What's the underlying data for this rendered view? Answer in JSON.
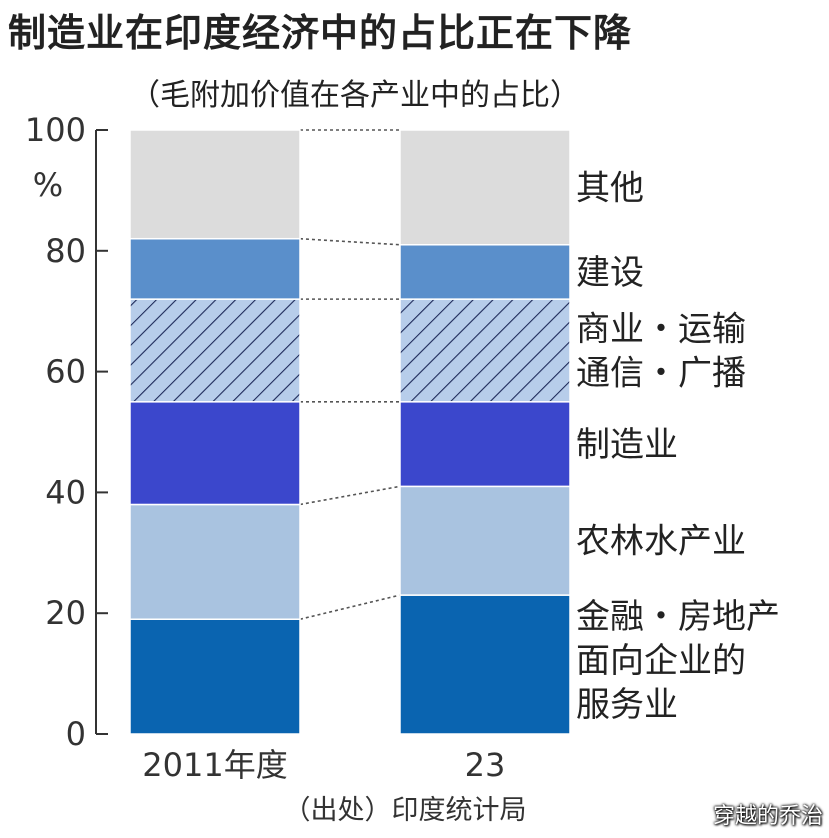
{
  "header": {
    "title": "制造业在印度经济中的占比正在下降",
    "subtitle": "（毛附加价值在各产业中的占比）"
  },
  "watermark": "穿越的乔治",
  "chart_data": {
    "type": "bar",
    "stacked": true,
    "y_unit": "%",
    "ylim": [
      0,
      100
    ],
    "y_ticks": [
      "0",
      "20",
      "40",
      "60",
      "80",
      "100"
    ],
    "categories": [
      "2011年度",
      "23"
    ],
    "series": [
      {
        "name": "金融・房地产面向企业的服务业",
        "values": [
          19,
          23
        ],
        "color": "#0a64b0"
      },
      {
        "name": "农林水产业",
        "values": [
          19,
          18
        ],
        "color": "#a9c3e0"
      },
      {
        "name": "制造业",
        "values": [
          17,
          14
        ],
        "color": "#3b47cc"
      },
      {
        "name": "商业・运输通信・广播",
        "values": [
          17,
          17
        ],
        "color": "#b7cdea",
        "pattern": "diagonal-hatch"
      },
      {
        "name": "建设",
        "values": [
          10,
          9
        ],
        "color": "#5a8fcb"
      },
      {
        "name": "其他",
        "values": [
          18,
          19
        ],
        "color": "#dcdcdc"
      }
    ],
    "legend_labels": [
      [
        "金融・房地产",
        "面向企业的",
        "服务业"
      ],
      [
        "农林水产业"
      ],
      [
        "制造业"
      ],
      [
        "商业・运输",
        "通信・广播"
      ],
      [
        "建设"
      ],
      [
        "其他"
      ]
    ],
    "source": "（出处）印度统计局",
    "grid": false,
    "legend_position": "right"
  }
}
